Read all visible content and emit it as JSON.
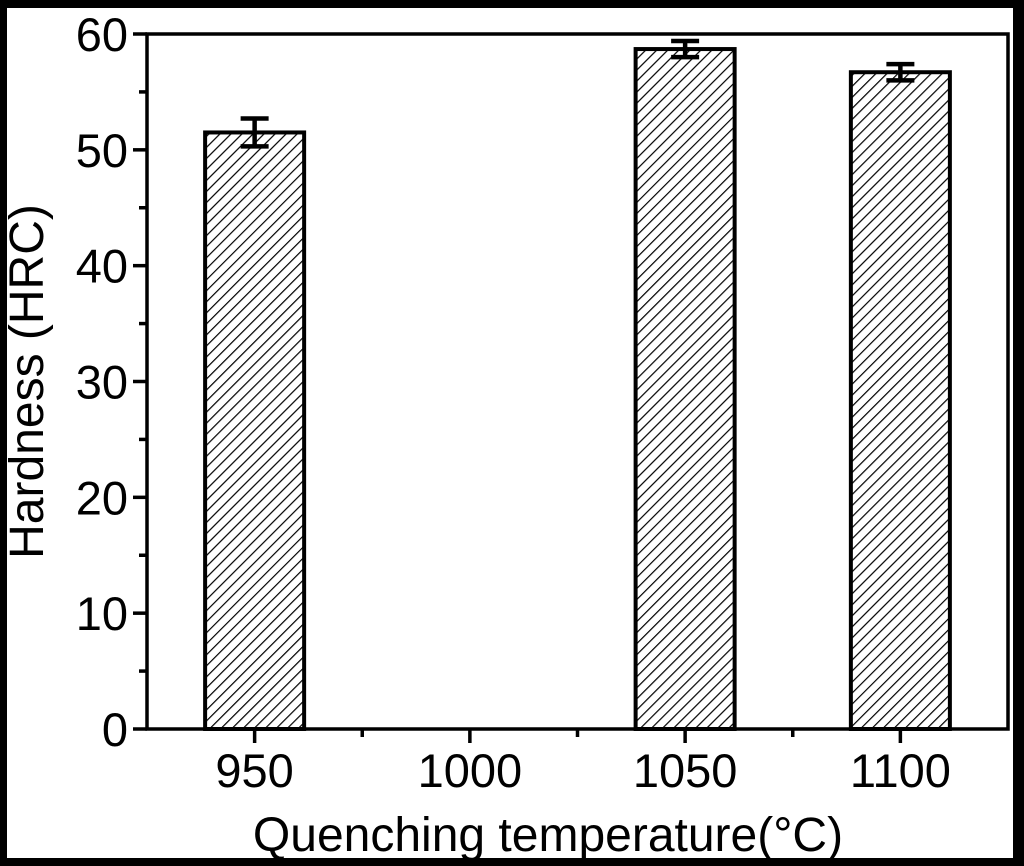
{
  "figure": {
    "description": "Bar chart of hardness versus quenching temperature with error bars",
    "background_color": "#ffffff",
    "border_color": "#000000",
    "foreground_color": "#000000"
  },
  "chart_data": {
    "type": "bar",
    "title": "",
    "xlabel": "Quenching temperature(°C)",
    "ylabel": "Hardness (HRC)",
    "series": [
      {
        "name": "Hardness",
        "points": [
          {
            "x": 950,
            "value": 51.5,
            "error": 1.2
          },
          {
            "x": 1050,
            "value": 58.7,
            "error": 0.7
          },
          {
            "x": 1100,
            "value": 56.7,
            "error": 0.7
          }
        ]
      }
    ],
    "xlim": [
      925,
      1125
    ],
    "ylim": [
      0,
      60
    ],
    "x_major_ticks": [
      950,
      1000,
      1050,
      1100
    ],
    "x_minor_ticks": [
      975,
      1025,
      1075
    ],
    "y_major_ticks": [
      0,
      10,
      20,
      30,
      40,
      50,
      60
    ],
    "y_minor_ticks": [
      5,
      15,
      25,
      35,
      45,
      55
    ],
    "bar_width_data_units": 23,
    "bar_fill_style": "diagonal-hatch",
    "hatch_direction": "forward-slash",
    "grid": false,
    "legend": null,
    "colors": {
      "bar_outline": "#000000",
      "bar_hatch": "#000000",
      "bar_background": "#ffffff",
      "axis": "#000000",
      "text": "#000000",
      "plot_background": "#ffffff",
      "image_border": "#000000"
    }
  }
}
